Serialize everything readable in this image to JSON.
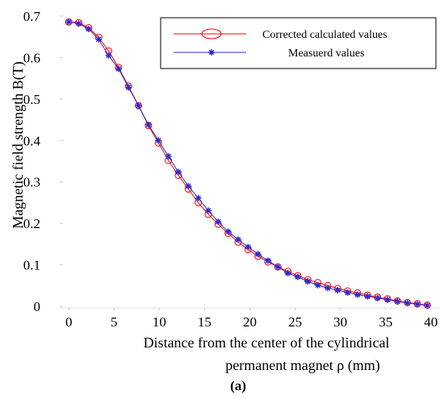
{
  "chart_data": {
    "type": "line",
    "xlabel_line1": "Distance from the center of the cylindrical",
    "xlabel_line2": "permanent magnet  ρ (mm)",
    "ylabel": "Magnetic field strength B(T)",
    "panel_label": "(a)",
    "xlim": [
      -1,
      41
    ],
    "ylim": [
      0,
      0.7
    ],
    "xticks": [
      0,
      5,
      10,
      15,
      20,
      25,
      30,
      35,
      40
    ],
    "yticks": [
      0,
      0.1,
      0.2,
      0.3,
      0.4,
      0.5,
      0.6,
      0.7
    ],
    "ytick_labels": [
      "0",
      "0.1",
      "0.2",
      "0.3",
      "0.4",
      "0.5",
      "0.6",
      "0.7"
    ],
    "legend_position": "top-right",
    "grid": false,
    "x": [
      0,
      1.1,
      2.2,
      3.3,
      4.4,
      5.5,
      6.6,
      7.7,
      8.8,
      9.9,
      11,
      12.1,
      13.2,
      14.3,
      15.4,
      16.5,
      17.6,
      18.7,
      19.8,
      20.9,
      22,
      23.1,
      24.2,
      25.3,
      26.4,
      27.5,
      28.6,
      29.7,
      30.8,
      31.9,
      33,
      34.1,
      35.2,
      36.3,
      37.4,
      38.5,
      39.6
    ],
    "series": [
      {
        "name": "Corrected calculated values",
        "color": "#ff0000",
        "marker": "circle",
        "values": [
          0.686,
          0.684,
          0.672,
          0.649,
          0.616,
          0.576,
          0.531,
          0.484,
          0.436,
          0.394,
          0.352,
          0.316,
          0.283,
          0.25,
          0.222,
          0.198,
          0.176,
          0.155,
          0.137,
          0.121,
          0.107,
          0.095,
          0.084,
          0.074,
          0.064,
          0.057,
          0.05,
          0.043,
          0.037,
          0.032,
          0.027,
          0.022,
          0.018,
          0.013,
          0.009,
          0.006,
          0.003
        ]
      },
      {
        "name": "Measuerd values",
        "color": "#2b2bd0",
        "marker": "asterisk",
        "values": [
          0.686,
          0.682,
          0.669,
          0.644,
          0.605,
          0.573,
          0.528,
          0.484,
          0.438,
          0.4,
          0.362,
          0.324,
          0.29,
          0.261,
          0.231,
          0.204,
          0.18,
          0.161,
          0.143,
          0.126,
          0.11,
          0.095,
          0.08,
          0.071,
          0.06,
          0.051,
          0.044,
          0.039,
          0.033,
          0.028,
          0.024,
          0.02,
          0.016,
          0.012,
          0.008,
          0.005,
          0.002
        ]
      }
    ]
  }
}
